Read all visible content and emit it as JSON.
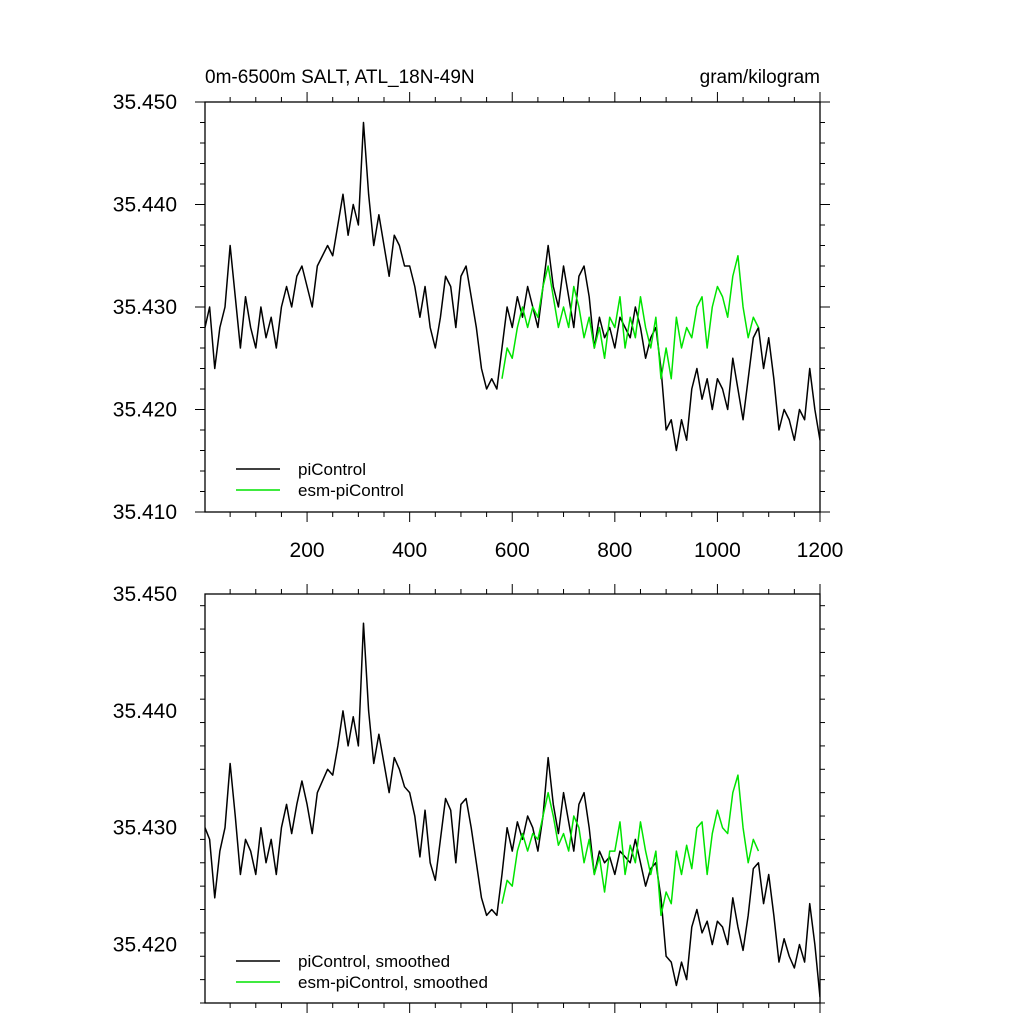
{
  "chart_data": [
    {
      "type": "line",
      "title_left": "0m-6500m SALT, ATL_18N-49N",
      "title_right": "gram/kilogram",
      "xlabel": "",
      "ylabel": "",
      "xlim": [
        1,
        1200
      ],
      "ylim": [
        35.41,
        35.45
      ],
      "x_ticks": [
        200,
        400,
        600,
        800,
        1000,
        1200
      ],
      "y_ticks": [
        35.41,
        35.42,
        35.43,
        35.44,
        35.45
      ],
      "y_tick_labels": [
        "35.410",
        "35.420",
        "35.430",
        "35.440",
        "35.450"
      ],
      "legend_position": "bottom-left",
      "series": [
        {
          "name": "piControl",
          "color": "#000000",
          "x": [
            1,
            10,
            20,
            30,
            40,
            50,
            60,
            70,
            80,
            90,
            100,
            110,
            120,
            130,
            140,
            150,
            160,
            170,
            180,
            190,
            200,
            210,
            220,
            230,
            240,
            250,
            260,
            270,
            280,
            290,
            300,
            310,
            320,
            330,
            340,
            350,
            360,
            370,
            380,
            390,
            400,
            410,
            420,
            430,
            440,
            450,
            460,
            470,
            480,
            490,
            500,
            510,
            520,
            530,
            540,
            550,
            560,
            570,
            580,
            590,
            600,
            610,
            620,
            630,
            640,
            650,
            660,
            670,
            680,
            690,
            700,
            710,
            720,
            730,
            740,
            750,
            760,
            770,
            780,
            790,
            800,
            810,
            820,
            830,
            840,
            850,
            860,
            870,
            880,
            890,
            900,
            910,
            920,
            930,
            940,
            950,
            960,
            970,
            980,
            990,
            1000,
            1010,
            1020,
            1030,
            1040,
            1050,
            1060,
            1070,
            1080,
            1090,
            1100,
            1110,
            1120,
            1130,
            1140,
            1150,
            1160,
            1170,
            1180,
            1190,
            1200
          ],
          "values": [
            35.428,
            35.43,
            35.424,
            35.428,
            35.43,
            35.436,
            35.431,
            35.426,
            35.431,
            35.428,
            35.426,
            35.43,
            35.427,
            35.429,
            35.426,
            35.43,
            35.432,
            35.43,
            35.433,
            35.434,
            35.432,
            35.43,
            35.434,
            35.435,
            35.436,
            35.435,
            35.438,
            35.441,
            35.437,
            35.44,
            35.438,
            35.448,
            35.441,
            35.436,
            35.439,
            35.436,
            35.433,
            35.437,
            35.436,
            35.434,
            35.434,
            35.432,
            35.429,
            35.432,
            35.428,
            35.426,
            35.429,
            35.433,
            35.432,
            35.428,
            35.433,
            35.434,
            35.431,
            35.428,
            35.424,
            35.422,
            35.423,
            35.422,
            35.426,
            35.43,
            35.428,
            35.431,
            35.429,
            35.432,
            35.43,
            35.428,
            35.432,
            35.436,
            35.432,
            35.43,
            35.434,
            35.431,
            35.428,
            35.433,
            35.434,
            35.431,
            35.426,
            35.429,
            35.427,
            35.428,
            35.426,
            35.429,
            35.428,
            35.427,
            35.43,
            35.428,
            35.425,
            35.427,
            35.428,
            35.424,
            35.418,
            35.419,
            35.416,
            35.419,
            35.417,
            35.422,
            35.424,
            35.421,
            35.423,
            35.42,
            35.423,
            35.422,
            35.42,
            35.425,
            35.422,
            35.419,
            35.423,
            35.427,
            35.428,
            35.424,
            35.427,
            35.423,
            35.418,
            35.42,
            35.419,
            35.417,
            35.42,
            35.419,
            35.424,
            35.42,
            35.417
          ]
        },
        {
          "name": "esm-piControl",
          "color": "#00e400",
          "x": [
            580,
            590,
            600,
            610,
            620,
            630,
            640,
            650,
            660,
            670,
            680,
            690,
            700,
            710,
            720,
            730,
            740,
            750,
            760,
            770,
            780,
            790,
            800,
            810,
            820,
            830,
            840,
            850,
            860,
            870,
            880,
            890,
            900,
            910,
            920,
            930,
            940,
            950,
            960,
            970,
            980,
            990,
            1000,
            1010,
            1020,
            1030,
            1040,
            1050,
            1060,
            1070,
            1080
          ],
          "values": [
            35.423,
            35.426,
            35.425,
            35.428,
            35.43,
            35.428,
            35.43,
            35.429,
            35.432,
            35.434,
            35.431,
            35.428,
            35.43,
            35.428,
            35.432,
            35.43,
            35.427,
            35.429,
            35.426,
            35.428,
            35.425,
            35.429,
            35.428,
            35.431,
            35.426,
            35.429,
            35.427,
            35.431,
            35.428,
            35.426,
            35.429,
            35.423,
            35.426,
            35.423,
            35.429,
            35.426,
            35.428,
            35.427,
            35.43,
            35.431,
            35.426,
            35.43,
            35.432,
            35.431,
            35.429,
            35.433,
            35.435,
            35.43,
            35.427,
            35.429,
            35.428
          ]
        }
      ]
    },
    {
      "type": "line",
      "xlabel": "",
      "ylabel": "",
      "xlim": [
        1,
        1200
      ],
      "ylim": [
        35.415,
        35.45
      ],
      "x_ticks": [
        200,
        400,
        600,
        800,
        1000,
        1200
      ],
      "y_ticks": [
        35.42,
        35.43,
        35.44,
        35.45
      ],
      "y_tick_labels": [
        "35.420",
        "35.430",
        "35.440",
        "35.450"
      ],
      "legend_position": "bottom-left",
      "series": [
        {
          "name": "piControl, smoothed",
          "color": "#000000",
          "x": [
            1,
            10,
            20,
            30,
            40,
            50,
            60,
            70,
            80,
            90,
            100,
            110,
            120,
            130,
            140,
            150,
            160,
            170,
            180,
            190,
            200,
            210,
            220,
            230,
            240,
            250,
            260,
            270,
            280,
            290,
            300,
            310,
            320,
            330,
            340,
            350,
            360,
            370,
            380,
            390,
            400,
            410,
            420,
            430,
            440,
            450,
            460,
            470,
            480,
            490,
            500,
            510,
            520,
            530,
            540,
            550,
            560,
            570,
            580,
            590,
            600,
            610,
            620,
            630,
            640,
            650,
            660,
            670,
            680,
            690,
            700,
            710,
            720,
            730,
            740,
            750,
            760,
            770,
            780,
            790,
            800,
            810,
            820,
            830,
            840,
            850,
            860,
            870,
            880,
            890,
            900,
            910,
            920,
            930,
            940,
            950,
            960,
            970,
            980,
            990,
            1000,
            1010,
            1020,
            1030,
            1040,
            1050,
            1060,
            1070,
            1080,
            1090,
            1100,
            1110,
            1120,
            1130,
            1140,
            1150,
            1160,
            1170,
            1180,
            1190,
            1200
          ],
          "values": [
            35.43,
            35.429,
            35.424,
            35.428,
            35.43,
            35.4355,
            35.431,
            35.426,
            35.429,
            35.428,
            35.426,
            35.43,
            35.427,
            35.429,
            35.426,
            35.43,
            35.432,
            35.4295,
            35.432,
            35.434,
            35.432,
            35.4295,
            35.433,
            35.434,
            35.435,
            35.4345,
            35.437,
            35.44,
            35.437,
            35.4395,
            35.437,
            35.4475,
            35.44,
            35.4355,
            35.438,
            35.4355,
            35.433,
            35.436,
            35.435,
            35.4335,
            35.433,
            35.431,
            35.4275,
            35.4315,
            35.427,
            35.4255,
            35.429,
            35.4325,
            35.4315,
            35.427,
            35.432,
            35.4325,
            35.43,
            35.427,
            35.424,
            35.4225,
            35.423,
            35.4225,
            35.426,
            35.43,
            35.428,
            35.4305,
            35.429,
            35.431,
            35.43,
            35.428,
            35.431,
            35.436,
            35.432,
            35.4295,
            35.433,
            35.4305,
            35.428,
            35.432,
            35.433,
            35.43,
            35.426,
            35.428,
            35.427,
            35.4275,
            35.426,
            35.428,
            35.4275,
            35.427,
            35.429,
            35.427,
            35.425,
            35.4265,
            35.427,
            35.424,
            35.419,
            35.4185,
            35.4165,
            35.4185,
            35.417,
            35.4215,
            35.423,
            35.421,
            35.422,
            35.42,
            35.422,
            35.4215,
            35.42,
            35.424,
            35.4215,
            35.4195,
            35.4225,
            35.4265,
            35.427,
            35.4235,
            35.426,
            35.4225,
            35.4185,
            35.4205,
            35.419,
            35.418,
            35.42,
            35.4185,
            35.4235,
            35.42,
            35.4155
          ]
        },
        {
          "name": "esm-piControl, smoothed",
          "color": "#00e400",
          "x": [
            580,
            590,
            600,
            610,
            620,
            630,
            640,
            650,
            660,
            670,
            680,
            690,
            700,
            710,
            720,
            730,
            740,
            750,
            760,
            770,
            780,
            790,
            800,
            810,
            820,
            830,
            840,
            850,
            860,
            870,
            880,
            890,
            900,
            910,
            920,
            930,
            940,
            950,
            960,
            970,
            980,
            990,
            1000,
            1010,
            1020,
            1030,
            1040,
            1050,
            1060,
            1070,
            1080
          ],
          "values": [
            35.4235,
            35.4255,
            35.425,
            35.428,
            35.4295,
            35.428,
            35.4295,
            35.429,
            35.431,
            35.433,
            35.431,
            35.4285,
            35.4295,
            35.428,
            35.431,
            35.43,
            35.427,
            35.429,
            35.426,
            35.4275,
            35.4245,
            35.428,
            35.428,
            35.4305,
            35.426,
            35.4285,
            35.427,
            35.4305,
            35.428,
            35.426,
            35.428,
            35.4225,
            35.4245,
            35.4235,
            35.428,
            35.426,
            35.4285,
            35.4265,
            35.43,
            35.4305,
            35.426,
            35.4295,
            35.4315,
            35.43,
            35.4295,
            35.433,
            35.4345,
            35.43,
            35.427,
            35.429,
            35.428
          ]
        }
      ]
    }
  ]
}
